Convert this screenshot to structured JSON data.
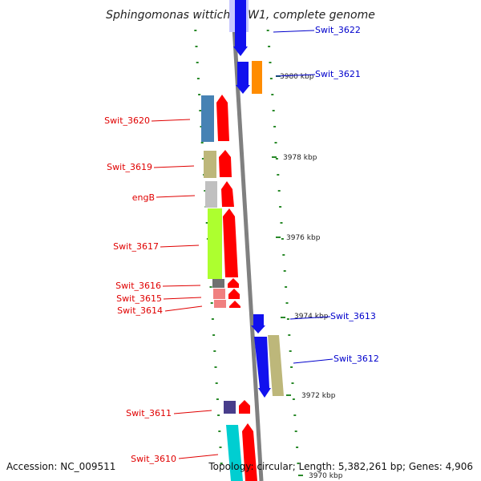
{
  "title": "Sphingomonas wittichii RW1, complete genome",
  "footer": {
    "accession": "Accession: NC_009511",
    "topology": "Topology: circular; Length: 5,382,261 bp; Genes: 4,906"
  },
  "colors": {
    "forward_label": "#e00000",
    "reverse_label": "#0000cc",
    "backbone": "#808080",
    "tick": "#2a8a2a"
  },
  "scale_labels": [
    "3980 kbp",
    "3978 kbp",
    "3976 kbp",
    "3974 kbp",
    "3972 kbp",
    "3970 kbp"
  ],
  "genes": [
    {
      "name": "Swit_3622",
      "strand": "reverse"
    },
    {
      "name": "Swit_3621",
      "strand": "reverse"
    },
    {
      "name": "Swit_3620",
      "strand": "forward"
    },
    {
      "name": "Swit_3619",
      "strand": "forward"
    },
    {
      "name": "engB",
      "strand": "forward"
    },
    {
      "name": "Swit_3617",
      "strand": "forward"
    },
    {
      "name": "Swit_3616",
      "strand": "forward"
    },
    {
      "name": "Swit_3615",
      "strand": "forward"
    },
    {
      "name": "Swit_3614",
      "strand": "forward"
    },
    {
      "name": "Swit_3613",
      "strand": "reverse"
    },
    {
      "name": "Swit_3612",
      "strand": "reverse"
    },
    {
      "name": "Swit_3611",
      "strand": "forward"
    },
    {
      "name": "Swit_3610",
      "strand": "forward"
    }
  ]
}
